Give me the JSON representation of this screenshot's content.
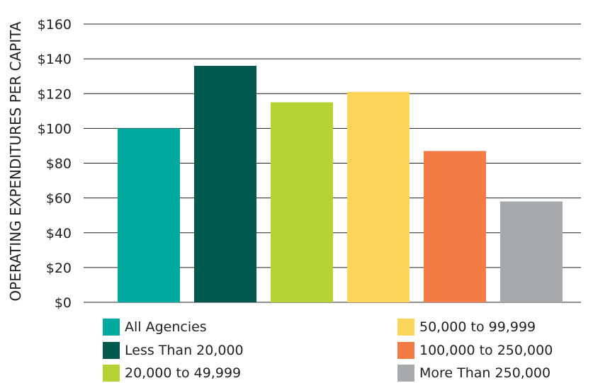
{
  "chart_data": {
    "type": "bar",
    "ylabel": "OPERATING EXPENDITURES PER CAPITA",
    "xlabel": "",
    "ylim": [
      0,
      160
    ],
    "yticks": [
      0,
      20,
      40,
      60,
      80,
      100,
      120,
      140,
      160
    ],
    "ytick_labels": [
      "$0",
      "$20",
      "$40",
      "$60",
      "$80",
      "$100",
      "$120",
      "$140",
      "$160"
    ],
    "grid": "horizontal",
    "legend_position": "bottom",
    "categories": [
      "All Agencies",
      "Less Than 20,000",
      "20,000 to 49,999",
      "50,000 to 99,999",
      "100,000 to 250,000",
      "More Than 250,000"
    ],
    "values": [
      100,
      136,
      115,
      121,
      87,
      58
    ],
    "colors": [
      "#00a99d",
      "#00594c",
      "#b5d334",
      "#fdd55b",
      "#f37b45",
      "#a7a9ac"
    ]
  }
}
